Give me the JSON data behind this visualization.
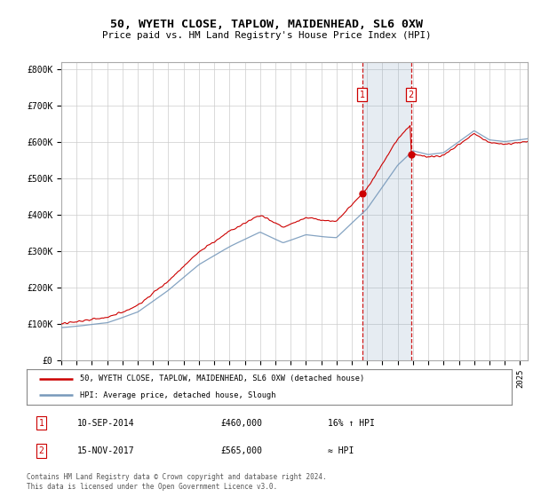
{
  "title": "50, WYETH CLOSE, TAPLOW, MAIDENHEAD, SL6 0XW",
  "subtitle": "Price paid vs. HM Land Registry's House Price Index (HPI)",
  "ylim": [
    0,
    820000
  ],
  "xlim_start": 1995.0,
  "xlim_end": 2025.5,
  "sale1_date": 2014.69,
  "sale1_price": 460000,
  "sale1_label": "1",
  "sale2_date": 2017.88,
  "sale2_price": 565000,
  "sale2_label": "2",
  "legend_line1": "50, WYETH CLOSE, TAPLOW, MAIDENHEAD, SL6 0XW (detached house)",
  "legend_line2": "HPI: Average price, detached house, Slough",
  "footer": "Contains HM Land Registry data © Crown copyright and database right 2024.\nThis data is licensed under the Open Government Licence v3.0.",
  "red_color": "#cc0000",
  "blue_color": "#7799bb",
  "fill_color": "#ddeeff",
  "grid_color": "#cccccc",
  "bg_color": "#f8f8f8"
}
